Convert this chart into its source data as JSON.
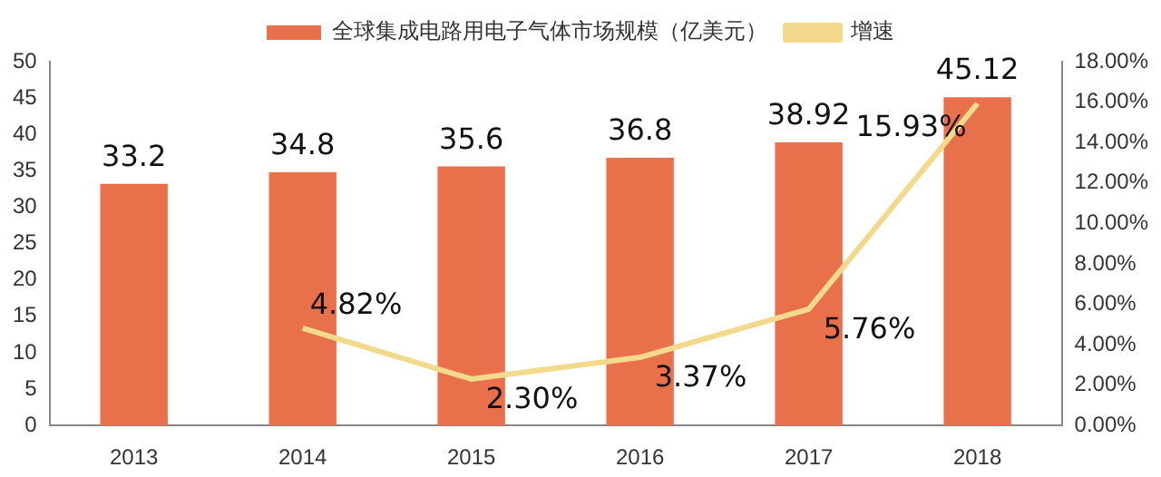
{
  "chart_data": {
    "type": "bar",
    "categories": [
      "2013",
      "2014",
      "2015",
      "2016",
      "2017",
      "2018"
    ],
    "series": [
      {
        "name": "全球集成电路用电子气体市场规模（亿美元）",
        "color": "#e8704a",
        "values": [
          33.2,
          34.8,
          35.6,
          36.8,
          38.92,
          45.12
        ],
        "value_labels": [
          "33.2",
          "34.8",
          "35.6",
          "36.8",
          "38.92",
          "45.12"
        ]
      },
      {
        "name": "增速",
        "type": "line",
        "axis": "y2",
        "color": "#f3d98c",
        "values": [
          null,
          4.82,
          2.3,
          3.37,
          5.76,
          15.93
        ],
        "value_labels": [
          null,
          "4.82%",
          "2.30%",
          "3.37%",
          "5.76%",
          "15.93%"
        ]
      }
    ],
    "ylim": [
      0,
      50
    ],
    "yticks": [
      0,
      5,
      10,
      15,
      20,
      25,
      30,
      35,
      40,
      45,
      50
    ],
    "y2lim": [
      0,
      18
    ],
    "y2ticks": [
      {
        "value": 0,
        "label": "0.00%"
      },
      {
        "value": 2,
        "label": "2.00%"
      },
      {
        "value": 4,
        "label": "4.00%"
      },
      {
        "value": 6,
        "label": "6.00%"
      },
      {
        "value": 8,
        "label": "8.00%"
      },
      {
        "value": 10,
        "label": "10.00%"
      },
      {
        "value": 12,
        "label": "12.00%"
      },
      {
        "value": 14,
        "label": "14.00%"
      },
      {
        "value": 16,
        "label": "16.00%"
      },
      {
        "value": 18,
        "label": "18.00%"
      }
    ],
    "grid": false,
    "legend": "top",
    "marker": "none"
  }
}
